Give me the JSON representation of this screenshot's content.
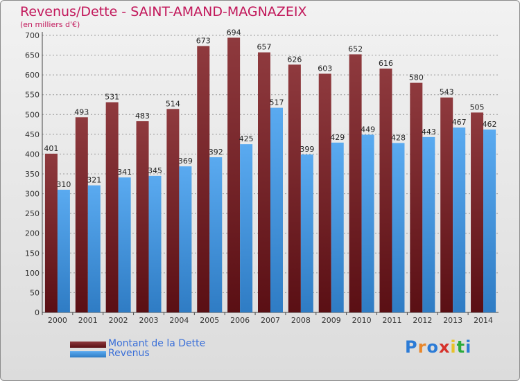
{
  "title": "Revenus/Dette - SAINT-AMAND-MAGNAZEIX",
  "subtitle": "(en milliers d'€)",
  "logo": "Proxiti",
  "colors": {
    "dette": "#6b1a1f",
    "revenus": "#3d8fd8",
    "title": "#c2185b",
    "legend_text": "#3a6fd8"
  },
  "chart_data": {
    "type": "bar",
    "categories": [
      "2000",
      "2001",
      "2002",
      "2003",
      "2004",
      "2005",
      "2006",
      "2007",
      "2008",
      "2009",
      "2010",
      "2011",
      "2012",
      "2013",
      "2014"
    ],
    "series": [
      {
        "name": "Montant de la Dette",
        "values": [
          401,
          493,
          531,
          483,
          514,
          673,
          694,
          657,
          626,
          603,
          652,
          616,
          580,
          543,
          505
        ]
      },
      {
        "name": "Revenus",
        "values": [
          310,
          321,
          341,
          345,
          369,
          392,
          425,
          517,
          399,
          429,
          449,
          428,
          443,
          467,
          462
        ]
      }
    ],
    "ylim": [
      0,
      700
    ],
    "yticks": [
      0,
      50,
      100,
      150,
      200,
      250,
      300,
      350,
      400,
      450,
      500,
      550,
      600,
      650,
      700
    ],
    "grid": true,
    "legend": "bottom-left"
  }
}
